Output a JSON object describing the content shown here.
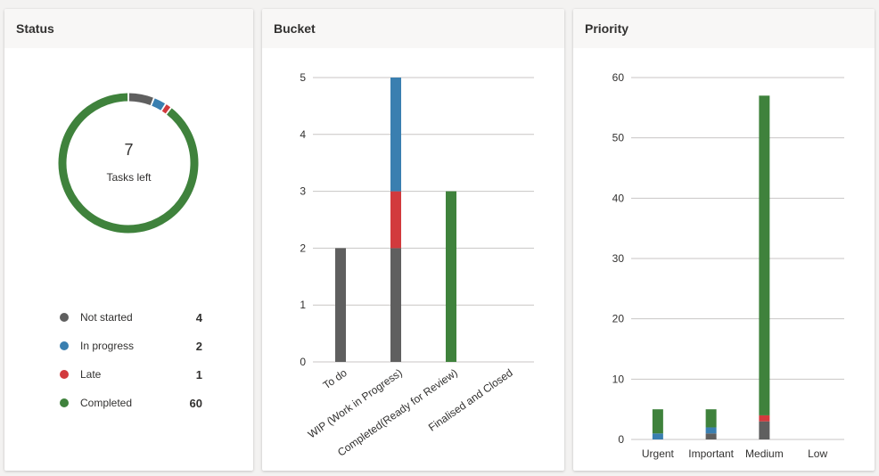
{
  "colors": {
    "not_started": "#5f5f5f",
    "in_progress": "#3a7fb0",
    "late": "#d23a3d",
    "completed": "#3f823c"
  },
  "status_card": {
    "title": "Status",
    "center_value": "7",
    "center_label": "Tasks left",
    "legend": [
      {
        "label": "Not started",
        "count": "4",
        "color": "#5f5f5f"
      },
      {
        "label": "In progress",
        "count": "2",
        "color": "#3a7fb0"
      },
      {
        "label": "Late",
        "count": "1",
        "color": "#d23a3d"
      },
      {
        "label": "Completed",
        "count": "60",
        "color": "#3f823c"
      }
    ]
  },
  "bucket_card": {
    "title": "Bucket"
  },
  "priority_card": {
    "title": "Priority"
  },
  "chart_data": [
    {
      "type": "pie",
      "title": "Status",
      "categories": [
        "Not started",
        "In progress",
        "Late",
        "Completed"
      ],
      "values": [
        4,
        2,
        1,
        60
      ]
    },
    {
      "type": "bar",
      "title": "Bucket",
      "stacked": true,
      "categories": [
        "To do",
        "WIP (Work in Progress)",
        "Completed(Ready for Review)",
        "Finalised and Closed"
      ],
      "series": [
        {
          "name": "Not started",
          "values": [
            2,
            2,
            0,
            0
          ]
        },
        {
          "name": "Late",
          "values": [
            0,
            1,
            0,
            0
          ]
        },
        {
          "name": "In progress",
          "values": [
            0,
            2,
            0,
            0
          ]
        },
        {
          "name": "Completed",
          "values": [
            0,
            0,
            3,
            0
          ]
        }
      ],
      "ylim": [
        0,
        5
      ],
      "yticks": [
        "0",
        "1",
        "2",
        "3",
        "4",
        "5"
      ],
      "grid": true
    },
    {
      "type": "bar",
      "title": "Priority",
      "stacked": true,
      "categories": [
        "Urgent",
        "Important",
        "Medium",
        "Low"
      ],
      "series": [
        {
          "name": "Not started",
          "values": [
            0,
            1,
            3,
            0
          ]
        },
        {
          "name": "In progress",
          "values": [
            1,
            1,
            0,
            0
          ]
        },
        {
          "name": "Late",
          "values": [
            0,
            0,
            1,
            0
          ]
        },
        {
          "name": "Completed",
          "values": [
            4,
            3,
            53,
            0
          ]
        }
      ],
      "ylim": [
        0,
        60
      ],
      "yticks": [
        "0",
        "10",
        "20",
        "30",
        "40",
        "50",
        "60"
      ],
      "grid": true
    }
  ]
}
